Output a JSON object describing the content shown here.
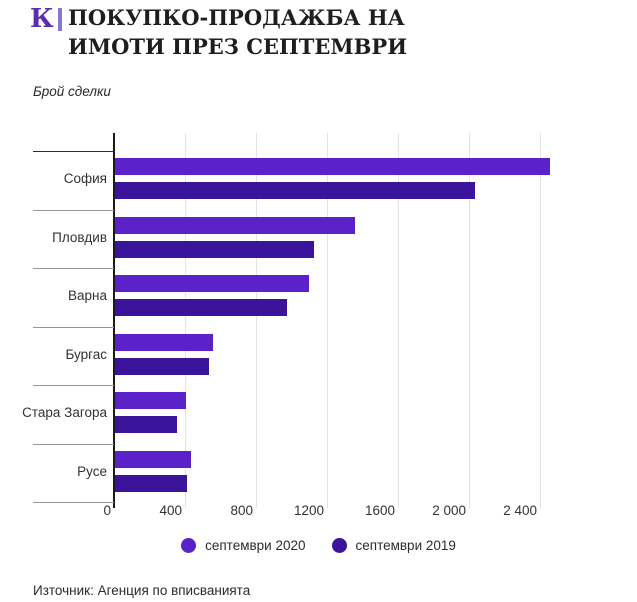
{
  "header": {
    "logo_k": "К",
    "title_line1": "ПОКУПКО-ПРОДАЖБА НА",
    "title_line2": "ИМОТИ ПРЕЗ СЕПТЕМВРИ",
    "subtitle": "Брой сделки"
  },
  "chart_data": {
    "type": "bar",
    "orientation": "horizontal",
    "title": "ПОКУПКО-ПРОДАЖБА НА ИМОТИ ПРЕЗ СЕПТЕМВРИ",
    "subtitle": "Брой сделки",
    "categories": [
      "София",
      "Пловдив",
      "Варна",
      "Бургас",
      "Стара Загора",
      "Русе"
    ],
    "series": [
      {
        "name": "септември 2020",
        "color": "#5a22c8",
        "values": [
          2450,
          1350,
          1090,
          550,
          400,
          430
        ]
      },
      {
        "name": "септември 2019",
        "color": "#3a149b",
        "values": [
          2030,
          1120,
          970,
          530,
          350,
          405
        ]
      }
    ],
    "xlim": [
      0,
      2510
    ],
    "x_ticks": [
      0,
      400,
      800,
      1200,
      1600,
      2000,
      2400
    ],
    "x_tick_labels": [
      "0",
      "400",
      "800",
      "1200",
      "1600",
      "2 000",
      "2 400"
    ],
    "grid": "vertical-light",
    "legend_position": "bottom-center",
    "axis_color": "#1a1a1a"
  },
  "footer": {
    "source": "Източник: Агенция по вписванията"
  }
}
